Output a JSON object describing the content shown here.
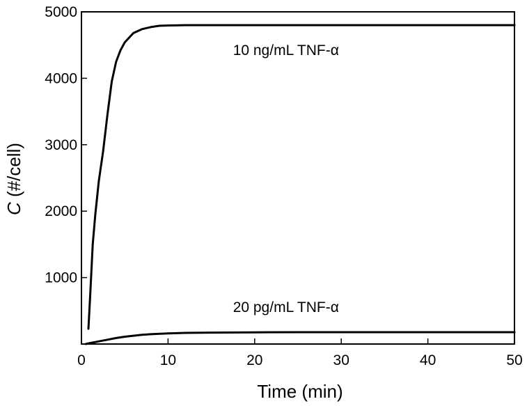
{
  "chart_data": {
    "type": "line",
    "xlabel": "Time (min)",
    "ylabel_italic": "C",
    "ylabel_rest": " (#/cell)",
    "xlim": [
      0,
      50
    ],
    "ylim": [
      0,
      5000
    ],
    "xticks": [
      0,
      10,
      20,
      30,
      40,
      50
    ],
    "yticks": [
      1000,
      2000,
      3000,
      4000,
      5000
    ],
    "grid": false,
    "series": [
      {
        "name": "10 ng/mL TNF-α",
        "x": [
          0.8,
          1.0,
          1.3,
          1.6,
          2.0,
          2.5,
          3.0,
          3.5,
          4.0,
          4.5,
          5.0,
          6.0,
          7.0,
          8.0,
          9.0,
          10.0,
          12.0,
          15.0,
          20.0,
          30.0,
          40.0,
          50.0
        ],
        "y": [
          230,
          700,
          1500,
          1950,
          2450,
          2900,
          3450,
          3950,
          4250,
          4420,
          4540,
          4680,
          4740,
          4770,
          4790,
          4795,
          4800,
          4800,
          4800,
          4800,
          4800,
          4800
        ]
      },
      {
        "name": "20 pg/mL TNF-α",
        "x": [
          0.5,
          1,
          2,
          3,
          4,
          5,
          6,
          7,
          8,
          10,
          12,
          15,
          20,
          25,
          30,
          40,
          50
        ],
        "y": [
          0,
          15,
          40,
          65,
          90,
          110,
          125,
          138,
          148,
          160,
          168,
          172,
          176,
          178,
          178,
          178,
          178
        ]
      }
    ],
    "annotations": [
      {
        "text": "10 ng/mL TNF-α",
        "x": 17.5,
        "y": 4350
      },
      {
        "text": "20 pg/mL TNF-α",
        "x": 17.5,
        "y": 480
      }
    ]
  }
}
